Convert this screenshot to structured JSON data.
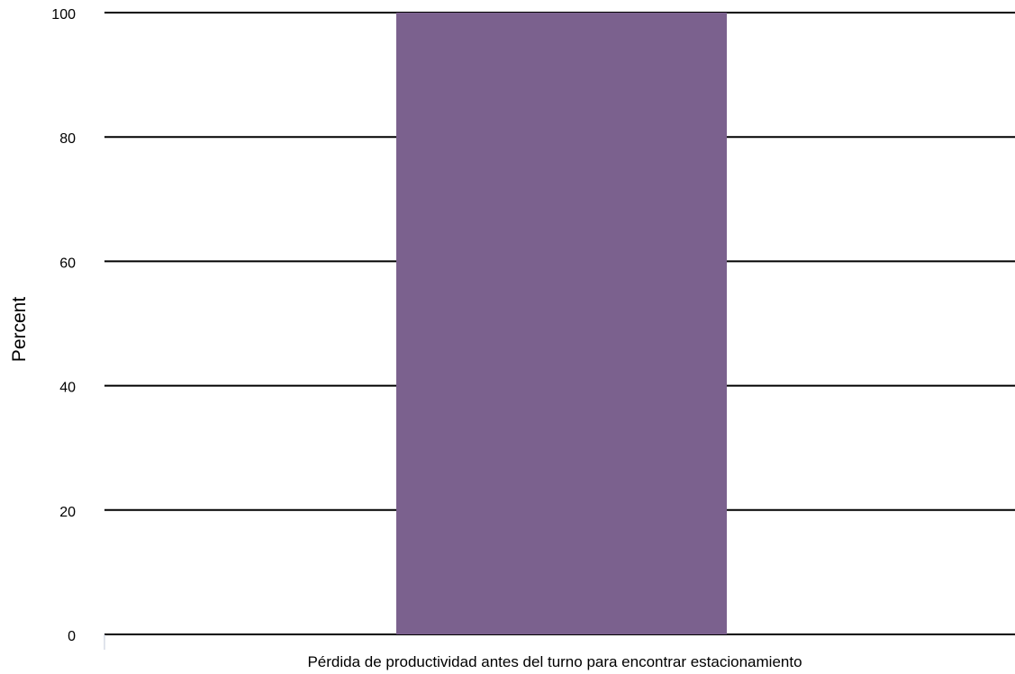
{
  "chart_data": {
    "type": "bar",
    "categories": [
      "Pérdida de productividad antes del turno para encontrar estacionamiento"
    ],
    "values": [
      100
    ],
    "title": "",
    "xlabel": "",
    "ylabel": "Percent",
    "ylim": [
      0,
      100
    ],
    "yticks": [
      0,
      20,
      40,
      60,
      80,
      100
    ],
    "grid": true,
    "legend": "none",
    "colors": {
      "bar": "#7b618e",
      "grid": "#000000",
      "axis": "#c0c8d8"
    }
  }
}
